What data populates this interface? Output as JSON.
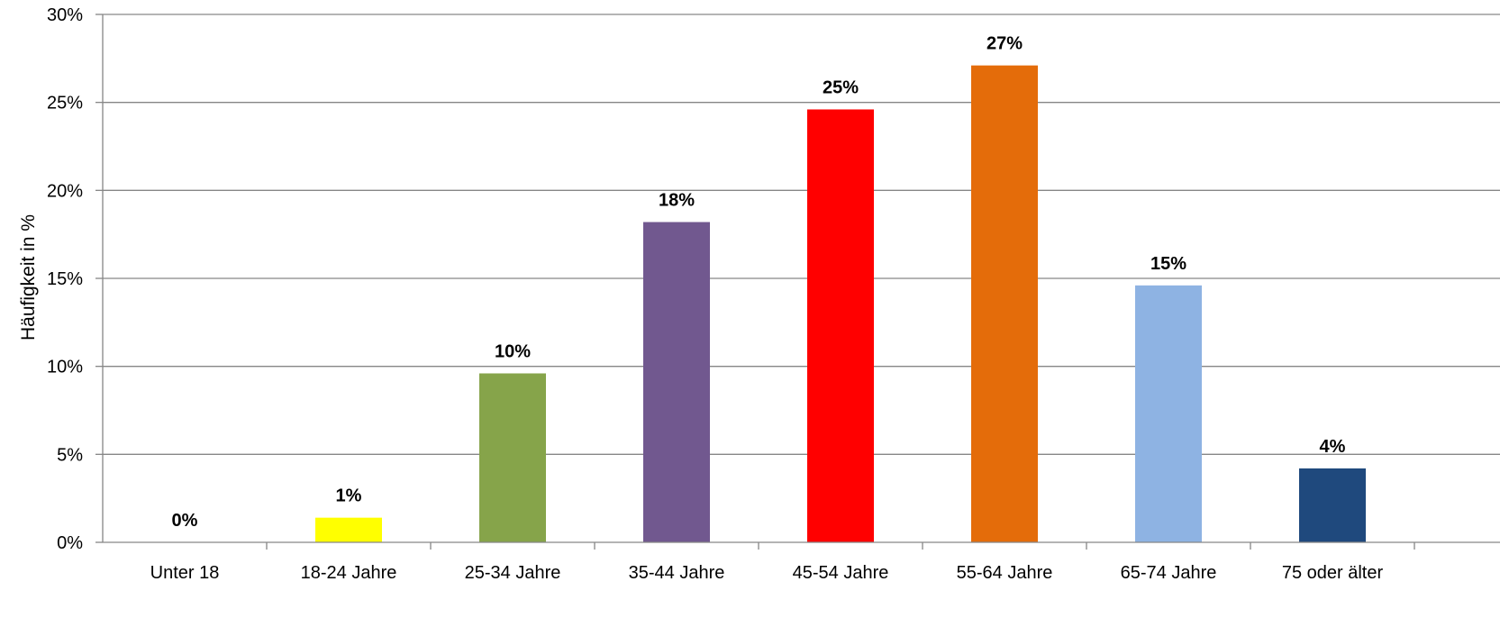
{
  "chart_data": {
    "type": "bar",
    "ylabel": "Häufigkeit in %",
    "xlabel": "",
    "ylim": [
      0,
      30
    ],
    "yticks": [
      0,
      5,
      10,
      15,
      20,
      25,
      30
    ],
    "ytick_labels": [
      "0%",
      "5%",
      "10%",
      "15%",
      "20%",
      "25%",
      "30%"
    ],
    "grid": true,
    "categories": [
      "Unter 18",
      "18-24 Jahre",
      "25-34 Jahre",
      "35-44 Jahre",
      "45-54 Jahre",
      "55-64 Jahre",
      "65-74 Jahre",
      "75 oder älter"
    ],
    "values": [
      0,
      1.4,
      9.6,
      18.2,
      24.6,
      27.1,
      14.6,
      4.2
    ],
    "data_labels": [
      "0%",
      "1%",
      "10%",
      "18%",
      "25%",
      "27%",
      "15%",
      "4%"
    ],
    "colors": [
      "#ffffff",
      "#ffff00",
      "#86a44a",
      "#71588f",
      "#ff0000",
      "#e46c0a",
      "#8eb3e3",
      "#1f497d"
    ]
  }
}
